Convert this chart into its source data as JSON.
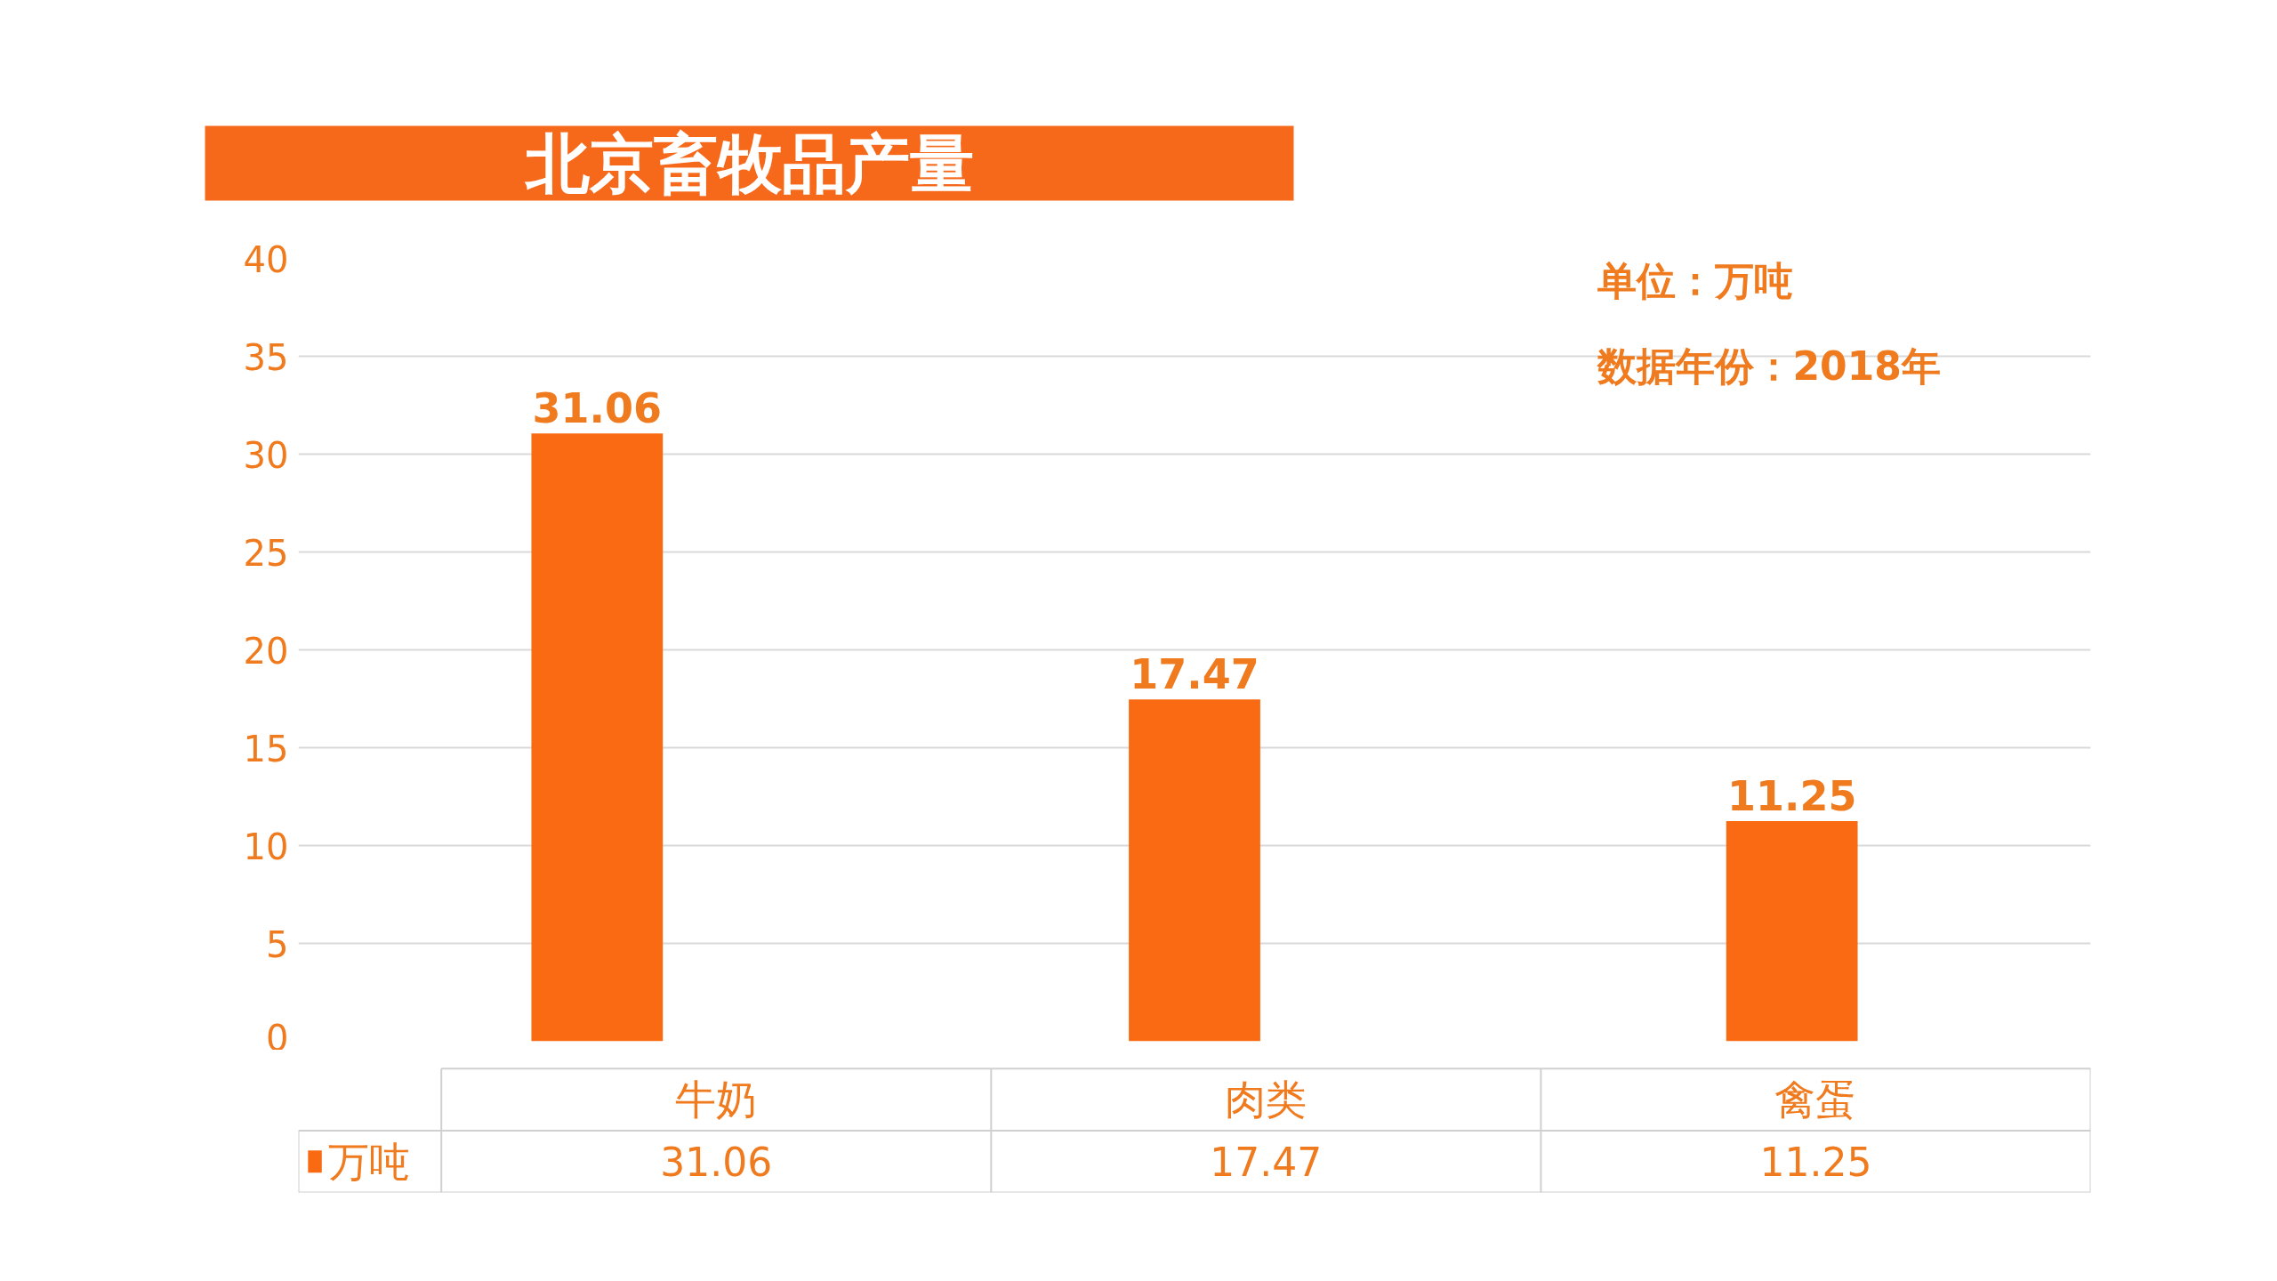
{
  "chart_data": {
    "type": "bar",
    "title": "北京畜牧品产量",
    "categories": [
      "牛奶",
      "肉类",
      "禽蛋"
    ],
    "series": [
      {
        "name": "万吨",
        "color": "#fa6a12",
        "values": [
          31.06,
          17.47,
          11.25
        ]
      }
    ],
    "value_labels": [
      "31.06",
      "17.47",
      "11.25"
    ],
    "ylim": [
      0,
      40
    ],
    "yticks": [
      0,
      5,
      10,
      15,
      20,
      25,
      30,
      35,
      40
    ],
    "grid": "y",
    "data_labels": true,
    "annotations": [
      "单位：万吨",
      "数据年份：2018年"
    ]
  }
}
